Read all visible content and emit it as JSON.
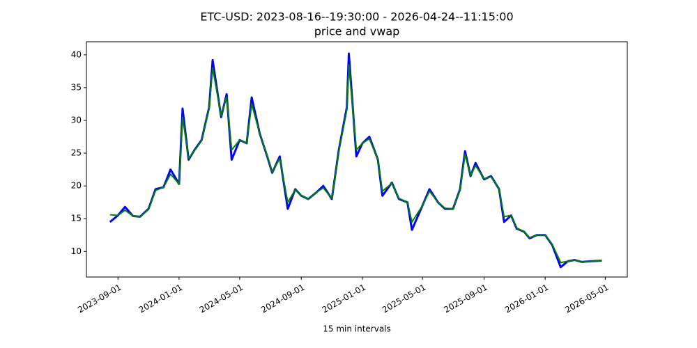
{
  "chart_data": {
    "type": "line",
    "title": "ETC-USD: 2023-08-16--19:30:00 - 2026-04-24--11:15:00",
    "subtitle": "price and vwap",
    "x_label": "15 min intervals",
    "x": [
      "2023-08-16",
      "2023-09-01",
      "2023-09-15",
      "2023-10-01",
      "2023-10-15",
      "2023-11-01",
      "2023-11-15",
      "2023-12-01",
      "2023-12-15",
      "2024-01-01",
      "2024-01-08",
      "2024-01-20",
      "2024-02-01",
      "2024-02-15",
      "2024-03-01",
      "2024-03-08",
      "2024-03-25",
      "2024-04-05",
      "2024-04-15",
      "2024-05-01",
      "2024-05-15",
      "2024-05-25",
      "2024-06-10",
      "2024-06-25",
      "2024-07-05",
      "2024-07-20",
      "2024-08-05",
      "2024-08-20",
      "2024-09-01",
      "2024-09-15",
      "2024-10-01",
      "2024-10-15",
      "2024-11-01",
      "2024-11-15",
      "2024-12-01",
      "2024-12-05",
      "2024-12-20",
      "2025-01-01",
      "2025-01-15",
      "2025-02-01",
      "2025-02-10",
      "2025-03-01",
      "2025-03-15",
      "2025-04-01",
      "2025-04-10",
      "2025-05-01",
      "2025-05-15",
      "2025-06-01",
      "2025-06-15",
      "2025-07-01",
      "2025-07-15",
      "2025-07-25",
      "2025-08-05",
      "2025-08-15",
      "2025-09-01",
      "2025-09-15",
      "2025-10-01",
      "2025-10-11",
      "2025-10-25",
      "2025-11-05",
      "2025-11-20",
      "2025-12-01",
      "2025-12-15",
      "2026-01-01",
      "2026-01-15",
      "2026-02-01",
      "2026-02-15",
      "2026-03-01",
      "2026-03-15",
      "2026-04-01",
      "2026-04-24"
    ],
    "series": [
      {
        "color": "#0000ff",
        "values": [
          14.5,
          15.5,
          16.8,
          15.4,
          15.3,
          16.5,
          19.5,
          19.8,
          22.5,
          20.3,
          31.8,
          24.0,
          25.5,
          27.0,
          32.0,
          39.2,
          30.5,
          34.0,
          24.0,
          27.0,
          26.5,
          33.5,
          28.0,
          24.5,
          22.0,
          24.5,
          16.5,
          19.5,
          18.5,
          18.0,
          19.0,
          20.0,
          18.0,
          25.5,
          32.0,
          40.2,
          24.5,
          26.5,
          27.5,
          24.0,
          18.5,
          20.5,
          18.0,
          17.5,
          13.3,
          17.0,
          19.5,
          17.5,
          16.5,
          16.5,
          19.5,
          25.3,
          21.5,
          23.5,
          21.0,
          21.5,
          19.5,
          14.5,
          15.5,
          13.5,
          13.0,
          12.0,
          12.5,
          12.5,
          11.0,
          7.6,
          8.5,
          8.7,
          8.4,
          8.5,
          8.6
        ]
      },
      {
        "color": "#008000",
        "values": [
          15.6,
          15.5,
          16.3,
          15.4,
          15.3,
          16.4,
          19.3,
          19.8,
          21.8,
          20.3,
          30.5,
          24.2,
          25.4,
          26.9,
          31.8,
          38.0,
          30.7,
          33.6,
          25.5,
          27.0,
          26.5,
          32.5,
          28.0,
          24.6,
          22.1,
          24.2,
          17.5,
          19.4,
          18.5,
          18.0,
          19.0,
          19.7,
          18.1,
          25.3,
          31.6,
          38.5,
          25.5,
          26.5,
          27.2,
          24.0,
          19.2,
          20.4,
          18.1,
          17.5,
          14.5,
          17.0,
          19.2,
          17.5,
          16.6,
          16.5,
          19.4,
          24.8,
          21.6,
          23.1,
          21.1,
          21.4,
          19.5,
          15.3,
          15.5,
          13.6,
          13.0,
          12.1,
          12.5,
          12.5,
          11.1,
          8.3,
          8.5,
          8.7,
          8.4,
          8.5,
          8.6
        ]
      }
    ],
    "xlim": [
      "2023-06-30",
      "2026-06-14"
    ],
    "xticks": [
      "2023-09-01",
      "2024-01-01",
      "2024-05-01",
      "2024-09-01",
      "2025-01-01",
      "2025-05-01",
      "2025-09-01",
      "2026-01-01",
      "2026-05-01"
    ],
    "ylim": [
      6.1,
      42.0
    ],
    "yticks": [
      10,
      15,
      20,
      25,
      30,
      35,
      40
    ],
    "grid": false
  }
}
